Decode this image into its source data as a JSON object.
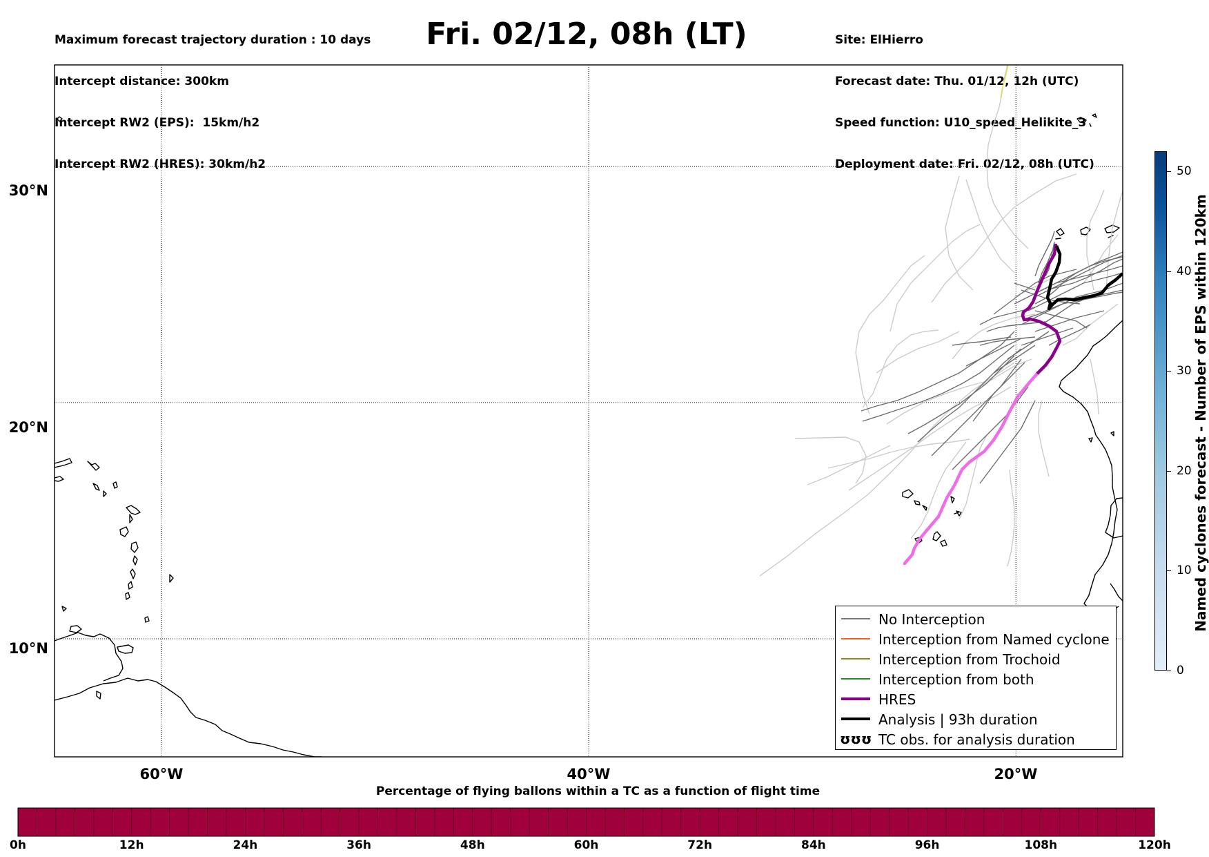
{
  "header_left": [
    "Maximum forecast trajectory duration : 10 days",
    "Intercept distance: 300km",
    "Intercept RW2 (EPS):  15km/h2",
    "Intercept RW2 (HRES): 30km/h2"
  ],
  "header_right": [
    "Site: ElHierro",
    "Forecast date: Thu. 01/12, 12h (UTC)",
    "Speed function: U10_speed_Helikite_3",
    "Deployment date: Fri. 02/12, 08h (UTC)"
  ],
  "title": "Fri. 02/12, 08h (LT)",
  "map": {
    "lon_range": [
      -65,
      -15
    ],
    "lat_range": [
      5,
      34.3
    ],
    "lat_ticks": [
      {
        "value": 30,
        "label": "30°N"
      },
      {
        "value": 20,
        "label": "20°N"
      },
      {
        "value": 10,
        "label": "10°N"
      }
    ],
    "lon_ticks": [
      {
        "value": -60,
        "label": "60°W"
      },
      {
        "value": -40,
        "label": "40°W"
      },
      {
        "value": -20,
        "label": "20°W"
      }
    ],
    "grid": "dotted",
    "colors": {
      "eps_light": "#cccccc",
      "eps_dark": "#6e6e6e",
      "hres": "#8b008b",
      "hres_projection": "#ee6ee6",
      "analysis": "#000000",
      "yellow_track": "#e6e64c"
    }
  },
  "legend": {
    "placement": "lower-right",
    "items": [
      {
        "label": "No Interception",
        "color": "#777777",
        "width": 1.5,
        "type": "line"
      },
      {
        "label": "Interception from Named cyclone",
        "color": "#ff5a1e",
        "width": 1.5,
        "type": "line"
      },
      {
        "label": "Interception from Trochoid",
        "color": "#8a8a1a",
        "width": 1.5,
        "type": "line"
      },
      {
        "label": "Interception from both",
        "color": "#228b22",
        "width": 1.5,
        "type": "line"
      },
      {
        "label": "HRES",
        "color": "#8b008b",
        "width": 4,
        "type": "line"
      },
      {
        "label": "Analysis | 93h duration",
        "color": "#000000",
        "width": 4,
        "type": "line"
      },
      {
        "label": "TC obs. for analysis duration",
        "glyph": "ʊʊʊ",
        "type": "glyph"
      }
    ]
  },
  "right_colorbar": {
    "label": "Named cyclones forecast - Number of EPS within 120km",
    "range": [
      0,
      52
    ],
    "ticks": [
      0,
      10,
      20,
      30,
      40,
      50
    ]
  },
  "bottom_colorbar": {
    "title": "Percentage of flying ballons within a TC as a function of flight time",
    "color": "#a0003c",
    "ticks": [
      "0h",
      "12h",
      "24h",
      "36h",
      "48h",
      "60h",
      "72h",
      "84h",
      "96h",
      "108h",
      "120h"
    ],
    "segments": 60
  }
}
